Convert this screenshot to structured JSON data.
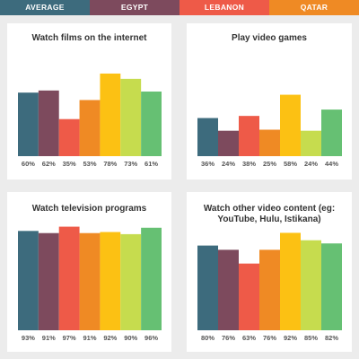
{
  "legend": [
    {
      "label": "AVERAGE",
      "color": "#3d6b7d"
    },
    {
      "label": "EGYPT",
      "color": "#7d4a5d"
    },
    {
      "label": "LEBANON",
      "color": "#ee5a48"
    },
    {
      "label": "QATAR",
      "color": "#ef8a24"
    }
  ],
  "chart_data": [
    {
      "type": "bar",
      "title": "Watch films on the internet",
      "categories": [
        "",
        "",
        "",
        "",
        "",
        "",
        ""
      ],
      "values": [
        60,
        62,
        35,
        53,
        78,
        73,
        61
      ],
      "labels": [
        "60%",
        "62%",
        "35%",
        "53%",
        "78%",
        "73%",
        "61%"
      ],
      "colors": [
        "#3d6b7d",
        "#7d4a5d",
        "#ee5a48",
        "#ef8a24",
        "#fcc113",
        "#c6dc4e",
        "#66c073"
      ],
      "ylim": [
        0,
        100
      ]
    },
    {
      "type": "bar",
      "title": "Play video games",
      "categories": [
        "",
        "",
        "",
        "",
        "",
        "",
        ""
      ],
      "values": [
        36,
        24,
        38,
        25,
        58,
        24,
        44
      ],
      "labels": [
        "36%",
        "24%",
        "38%",
        "25%",
        "58%",
        "24%",
        "44%"
      ],
      "colors": [
        "#3d6b7d",
        "#7d4a5d",
        "#ee5a48",
        "#ef8a24",
        "#fcc113",
        "#c6dc4e",
        "#66c073"
      ],
      "ylim": [
        0,
        100
      ]
    },
    {
      "type": "bar",
      "title": "Watch television programs",
      "categories": [
        "",
        "",
        "",
        "",
        "",
        "",
        ""
      ],
      "values": [
        93,
        91,
        97,
        91,
        92,
        90,
        96
      ],
      "labels": [
        "93%",
        "91%",
        "97%",
        "91%",
        "92%",
        "90%",
        "96%"
      ],
      "colors": [
        "#3d6b7d",
        "#7d4a5d",
        "#ee5a48",
        "#ef8a24",
        "#fcc113",
        "#c6dc4e",
        "#66c073"
      ],
      "ylim": [
        0,
        100
      ]
    },
    {
      "type": "bar",
      "title": "Watch other video content (eg: YouTube, Hulu, Istikana)",
      "categories": [
        "",
        "",
        "",
        "",
        "",
        "",
        ""
      ],
      "values": [
        80,
        76,
        63,
        76,
        92,
        85,
        82
      ],
      "labels": [
        "80%",
        "76%",
        "63%",
        "76%",
        "92%",
        "85%",
        "82%"
      ],
      "colors": [
        "#3d6b7d",
        "#7d4a5d",
        "#ee5a48",
        "#ef8a24",
        "#fcc113",
        "#c6dc4e",
        "#66c073"
      ],
      "ylim": [
        0,
        100
      ]
    }
  ]
}
